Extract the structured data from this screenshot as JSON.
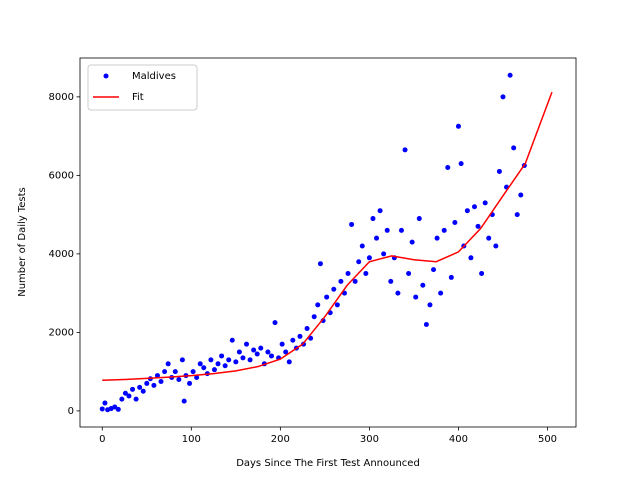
{
  "chart_data": {
    "type": "scatter",
    "xlabel": "Days Since The First Test Announced",
    "ylabel": "Number of Daily Tests",
    "xlim": [
      -25,
      532
    ],
    "ylim": [
      -410,
      8990
    ],
    "xticks": [
      0,
      100,
      200,
      300,
      400,
      500
    ],
    "yticks": [
      0,
      2000,
      4000,
      6000,
      8000
    ],
    "legend": "upper left",
    "series": [
      {
        "name": "Maldives",
        "style": "marker",
        "color": "#0000ff",
        "x": [
          0,
          3,
          6,
          10,
          14,
          18,
          22,
          26,
          30,
          34,
          38,
          42,
          46,
          50,
          54,
          58,
          62,
          66,
          70,
          74,
          78,
          82,
          86,
          90,
          92,
          94,
          98,
          102,
          106,
          110,
          114,
          118,
          122,
          126,
          130,
          134,
          138,
          142,
          146,
          150,
          154,
          158,
          162,
          166,
          170,
          174,
          178,
          182,
          186,
          190,
          194,
          198,
          202,
          206,
          210,
          214,
          218,
          222,
          226,
          230,
          234,
          238,
          242,
          245,
          248,
          252,
          256,
          260,
          264,
          268,
          272,
          276,
          280,
          284,
          288,
          292,
          296,
          300,
          304,
          308,
          312,
          316,
          320,
          324,
          328,
          332,
          336,
          340,
          344,
          348,
          352,
          356,
          360,
          364,
          368,
          372,
          376,
          380,
          384,
          388,
          392,
          396,
          400,
          403,
          406,
          410,
          414,
          418,
          422,
          426,
          430,
          434,
          438,
          442,
          446,
          450,
          454,
          458,
          462,
          466,
          470,
          474
        ],
        "values": [
          50,
          200,
          30,
          60,
          100,
          40,
          300,
          450,
          380,
          550,
          300,
          600,
          500,
          700,
          820,
          650,
          900,
          750,
          1000,
          1200,
          850,
          1000,
          800,
          1300,
          250,
          900,
          700,
          1000,
          850,
          1200,
          1100,
          950,
          1300,
          1050,
          1200,
          1400,
          1150,
          1300,
          1800,
          1250,
          1500,
          1350,
          1700,
          1300,
          1550,
          1450,
          1600,
          1200,
          1500,
          1400,
          2250,
          1350,
          1700,
          1500,
          1250,
          1800,
          1600,
          1900,
          1700,
          2100,
          1850,
          2400,
          2700,
          3750,
          2300,
          2900,
          2500,
          3100,
          2700,
          3300,
          3000,
          3500,
          4750,
          3300,
          3800,
          4200,
          3500,
          3900,
          4900,
          4400,
          5100,
          4000,
          4600,
          3300,
          3900,
          3000,
          4600,
          6650,
          3500,
          4300,
          2900,
          4900,
          3200,
          2200,
          2700,
          3600,
          4400,
          3000,
          4600,
          6200,
          3400,
          4800,
          7250,
          6300,
          4200,
          5100,
          3900,
          5200,
          4700,
          3500,
          5300,
          4400,
          5000,
          4200,
          6100,
          8000,
          5700,
          8550,
          6700,
          5000,
          5500,
          6250
        ]
      },
      {
        "name": "Fit",
        "style": "line",
        "color": "#ff0000",
        "x": [
          0,
          25,
          50,
          75,
          100,
          125,
          150,
          175,
          200,
          225,
          250,
          275,
          300,
          325,
          350,
          375,
          400,
          425,
          450,
          475,
          505
        ],
        "values": [
          780,
          800,
          830,
          860,
          900,
          950,
          1020,
          1130,
          1320,
          1700,
          2400,
          3200,
          3800,
          3950,
          3850,
          3800,
          4050,
          4650,
          5480,
          6300,
          8120
        ]
      }
    ]
  }
}
